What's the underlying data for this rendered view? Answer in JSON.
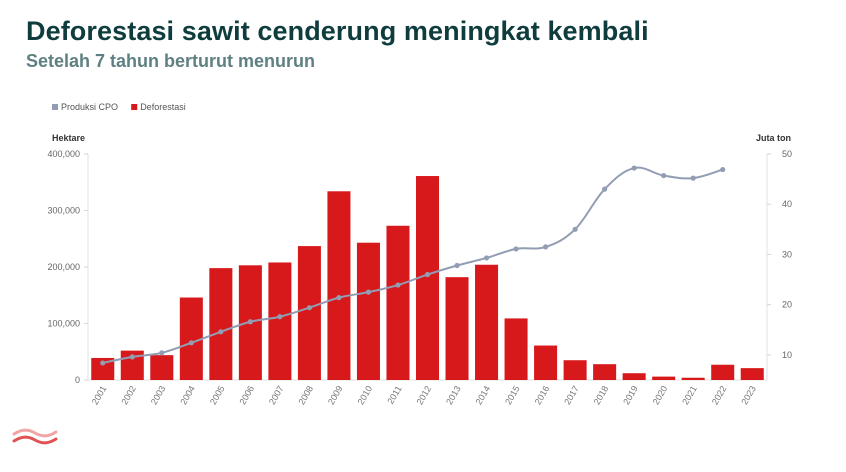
{
  "header": {
    "title": "Deforestasi sawit cenderung meningkat kembali",
    "subtitle": "Setelah 7 tahun berturut menurun"
  },
  "chart_data": {
    "type": "bar",
    "categories": [
      "2001",
      "2002",
      "2003",
      "2004",
      "2005",
      "2006",
      "2007",
      "2008",
      "2009",
      "2010",
      "2011",
      "2012",
      "2013",
      "2014",
      "2015",
      "2016",
      "2017",
      "2018",
      "2019",
      "2020",
      "2021",
      "2022",
      "2023"
    ],
    "series": [
      {
        "name": "Deforestasi",
        "type": "bar",
        "axis": "left",
        "color": "#d7191c",
        "values": [
          39000,
          52000,
          44000,
          146000,
          198000,
          203000,
          208000,
          237000,
          334000,
          243000,
          273000,
          361000,
          182000,
          204000,
          109000,
          61000,
          35000,
          28000,
          12000,
          6000,
          4000,
          27000,
          21000
        ]
      },
      {
        "name": "Produksi CPO",
        "type": "line",
        "axis": "right",
        "color": "#929db3",
        "values": [
          8.4,
          9.6,
          10.4,
          12.4,
          14.6,
          16.6,
          17.6,
          19.4,
          21.4,
          22.5,
          23.9,
          26.0,
          27.8,
          29.3,
          31.1,
          31.5,
          35.0,
          43.0,
          47.2,
          45.7,
          45.2,
          46.9,
          null
        ]
      }
    ],
    "yleft": {
      "label": "Hektare",
      "ylim": [
        0,
        400000
      ],
      "ticks": [
        "0",
        "100,000",
        "200,000",
        "300,000",
        "400,000"
      ]
    },
    "yright": {
      "label": "Juta ton",
      "ylim": [
        5,
        50
      ],
      "ticks": [
        "10",
        "20",
        "30",
        "40",
        "50"
      ]
    },
    "legend": {
      "position": "top-left",
      "items": [
        "Produksi CPO",
        "Deforestasi"
      ]
    },
    "grid": false
  }
}
